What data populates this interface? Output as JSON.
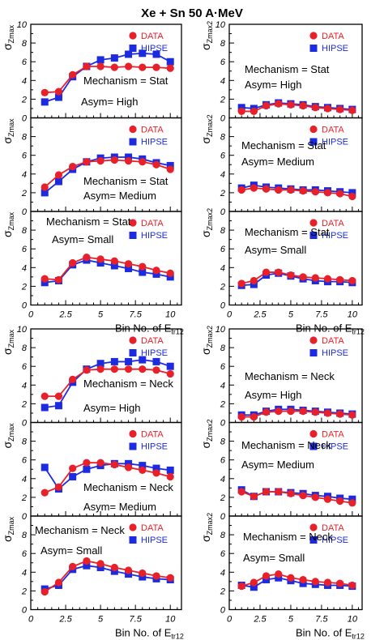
{
  "title": "Xe + Sn 50 A·MeV",
  "colors": {
    "data": "#e8202a",
    "hipse": "#1d2be0",
    "axis": "#000000"
  },
  "x_axis": {
    "label_main": "Bin No. of E",
    "label_sub": "tr12",
    "ticks": [
      "0",
      "2.5",
      "5",
      "7.5",
      "10"
    ],
    "range": [
      0,
      10.8
    ]
  },
  "y_labels": {
    "left_sigma": "σ",
    "left_sub": "Zmax",
    "right_sigma": "σ",
    "right_sub": "Zmax2"
  },
  "y_ticks": [
    "0",
    "2",
    "4",
    "6",
    "8",
    "10"
  ],
  "legend": {
    "data": "DATA",
    "hipse": "HIPSE"
  },
  "chart_data": [
    {
      "type": "line",
      "group": "upper",
      "column": "left",
      "row": 0,
      "ylabel": "σZmax",
      "xlabel": "",
      "ylim": [
        0,
        10
      ],
      "mechanism": "Mechanism = Stat",
      "asym": "Asym= High",
      "x": [
        1,
        2,
        3,
        4,
        5,
        6,
        7,
        8,
        9,
        10
      ],
      "series": [
        {
          "name": "DATA",
          "values": [
            2.7,
            2.8,
            4.6,
            5.5,
            5.5,
            5.4,
            5.5,
            5.4,
            5.4,
            5.3
          ]
        },
        {
          "name": "HIPSE",
          "values": [
            1.7,
            2.2,
            4.4,
            5.5,
            6.2,
            6.4,
            6.8,
            6.9,
            6.8,
            6.0
          ]
        }
      ]
    },
    {
      "type": "line",
      "group": "upper",
      "column": "right",
      "row": 0,
      "ylabel": "σZmax2",
      "xlabel": "",
      "ylim": [
        0,
        10
      ],
      "mechanism": "Mechanism = Stat",
      "asym": "Asym= High",
      "x": [
        1,
        2,
        3,
        4,
        5,
        6,
        7,
        8,
        9,
        10
      ],
      "series": [
        {
          "name": "DATA",
          "values": [
            0.7,
            0.7,
            1.3,
            1.5,
            1.4,
            1.3,
            1.1,
            1.0,
            0.9,
            0.8
          ]
        },
        {
          "name": "HIPSE",
          "values": [
            1.1,
            1.0,
            1.4,
            1.6,
            1.5,
            1.4,
            1.2,
            1.1,
            1.0,
            0.9
          ]
        }
      ]
    },
    {
      "type": "line",
      "group": "upper",
      "column": "left",
      "row": 1,
      "ylabel": "σZmax",
      "xlabel": "",
      "ylim": [
        0,
        10
      ],
      "mechanism": "Mechanism = Stat",
      "asym": "Asym= Medium",
      "x": [
        1,
        2,
        3,
        4,
        5,
        6,
        7,
        8,
        9,
        10
      ],
      "series": [
        {
          "name": "DATA",
          "values": [
            2.6,
            3.9,
            4.8,
            5.3,
            5.4,
            5.5,
            5.4,
            5.3,
            5.0,
            4.5
          ]
        },
        {
          "name": "HIPSE",
          "values": [
            2.0,
            3.2,
            4.5,
            5.3,
            5.7,
            5.8,
            5.8,
            5.6,
            5.2,
            4.9
          ]
        }
      ]
    },
    {
      "type": "line",
      "group": "upper",
      "column": "right",
      "row": 1,
      "ylabel": "σZmax2",
      "xlabel": "",
      "ylim": [
        0,
        10
      ],
      "mechanism": "Mechanism = Stat",
      "asym": "Asym= Medium",
      "x": [
        1,
        2,
        3,
        4,
        5,
        6,
        7,
        8,
        9,
        10
      ],
      "series": [
        {
          "name": "DATA",
          "values": [
            2.3,
            2.5,
            2.4,
            2.3,
            2.3,
            2.2,
            2.1,
            2.0,
            1.9,
            1.6
          ]
        },
        {
          "name": "HIPSE",
          "values": [
            2.5,
            2.8,
            2.6,
            2.5,
            2.4,
            2.3,
            2.3,
            2.2,
            2.1,
            2.0
          ]
        }
      ]
    },
    {
      "type": "line",
      "group": "upper",
      "column": "left",
      "row": 2,
      "ylabel": "σZmax",
      "xlabel": "",
      "ylim": [
        0,
        10
      ],
      "mechanism": "Mechanism = Stat",
      "asym": "Asym= Small",
      "x": [
        1,
        2,
        3,
        4,
        5,
        6,
        7,
        8,
        9,
        10
      ],
      "series": [
        {
          "name": "DATA",
          "values": [
            2.8,
            2.7,
            4.5,
            5.1,
            4.9,
            4.7,
            4.4,
            4.1,
            3.7,
            3.4
          ]
        },
        {
          "name": "HIPSE",
          "values": [
            2.4,
            2.6,
            4.3,
            4.8,
            4.5,
            4.2,
            3.9,
            3.5,
            3.3,
            3.0
          ]
        }
      ]
    },
    {
      "type": "line",
      "group": "upper",
      "column": "right",
      "row": 2,
      "ylabel": "σZmax2",
      "xlabel": "Bin No. of Etr12",
      "ylim": [
        0,
        10
      ],
      "mechanism": "Mechanism = Stat",
      "asym": "Asym= Small",
      "x": [
        1,
        2,
        3,
        4,
        5,
        6,
        7,
        8,
        9,
        10
      ],
      "series": [
        {
          "name": "DATA",
          "values": [
            2.3,
            2.6,
            3.5,
            3.5,
            3.2,
            3.0,
            2.9,
            2.8,
            2.7,
            2.6
          ]
        },
        {
          "name": "HIPSE",
          "values": [
            2.1,
            2.2,
            3.2,
            3.4,
            3.1,
            2.8,
            2.6,
            2.5,
            2.5,
            2.4
          ]
        }
      ]
    },
    {
      "type": "line",
      "group": "lower",
      "column": "left",
      "row": 0,
      "ylabel": "σZmax",
      "xlabel": "",
      "ylim": [
        0,
        10
      ],
      "mechanism": "Mechanism = Neck",
      "asym": "Asym= High",
      "x": [
        1,
        2,
        3,
        4,
        5,
        6,
        7,
        8,
        9,
        10
      ],
      "series": [
        {
          "name": "DATA",
          "values": [
            2.8,
            2.8,
            4.6,
            5.6,
            5.7,
            5.7,
            5.7,
            5.7,
            5.6,
            5.2
          ]
        },
        {
          "name": "HIPSE",
          "values": [
            1.6,
            1.8,
            4.3,
            5.7,
            6.3,
            6.5,
            6.5,
            6.7,
            6.5,
            6.0
          ]
        }
      ]
    },
    {
      "type": "line",
      "group": "lower",
      "column": "right",
      "row": 0,
      "ylabel": "σZmax2",
      "xlabel": "",
      "ylim": [
        0,
        10
      ],
      "mechanism": "Mechanism = Neck",
      "asym": "Asym= High",
      "x": [
        1,
        2,
        3,
        4,
        5,
        6,
        7,
        8,
        9,
        10
      ],
      "series": [
        {
          "name": "DATA",
          "values": [
            0.6,
            0.6,
            1.1,
            1.2,
            1.2,
            1.2,
            1.1,
            1.0,
            0.9,
            0.8
          ]
        },
        {
          "name": "HIPSE",
          "values": [
            0.8,
            0.8,
            1.2,
            1.4,
            1.4,
            1.3,
            1.2,
            1.1,
            1.0,
            0.9
          ]
        }
      ]
    },
    {
      "type": "line",
      "group": "lower",
      "column": "left",
      "row": 1,
      "ylabel": "σZmax",
      "xlabel": "",
      "ylim": [
        0,
        10
      ],
      "mechanism": "Mechanism = Neck",
      "asym": "Asym= Medium",
      "x": [
        1,
        2,
        3,
        4,
        5,
        6,
        7,
        8,
        9,
        10
      ],
      "series": [
        {
          "name": "DATA",
          "values": [
            2.5,
            3.1,
            5.1,
            5.7,
            5.7,
            5.5,
            5.2,
            4.9,
            4.6,
            4.2
          ]
        },
        {
          "name": "HIPSE",
          "values": [
            5.2,
            2.9,
            4.2,
            5.0,
            5.4,
            5.6,
            5.6,
            5.4,
            5.1,
            4.9
          ]
        }
      ]
    },
    {
      "type": "line",
      "group": "lower",
      "column": "right",
      "row": 1,
      "ylabel": "σZmax2",
      "xlabel": "",
      "ylim": [
        0,
        10
      ],
      "mechanism": "Mechanism = Neck",
      "asym": "Asym= Medium",
      "x": [
        1,
        2,
        3,
        4,
        5,
        6,
        7,
        8,
        9,
        10
      ],
      "series": [
        {
          "name": "DATA",
          "values": [
            2.6,
            2.1,
            2.6,
            2.6,
            2.4,
            2.2,
            2.0,
            1.8,
            1.6,
            1.4
          ]
        },
        {
          "name": "HIPSE",
          "values": [
            2.8,
            2.1,
            2.6,
            2.6,
            2.5,
            2.4,
            2.2,
            2.1,
            1.9,
            1.8
          ]
        }
      ]
    },
    {
      "type": "line",
      "group": "lower",
      "column": "left",
      "row": 2,
      "ylabel": "σZmax",
      "xlabel": "",
      "ylim": [
        0,
        10
      ],
      "mechanism": "Mechanism = Neck",
      "asym": "Asym= Small",
      "x": [
        1,
        2,
        3,
        4,
        5,
        6,
        7,
        8,
        9,
        10
      ],
      "series": [
        {
          "name": "DATA",
          "values": [
            1.9,
            2.9,
            4.6,
            5.2,
            4.9,
            4.5,
            4.2,
            3.9,
            3.6,
            3.4
          ]
        },
        {
          "name": "HIPSE",
          "values": [
            2.2,
            2.6,
            4.3,
            4.7,
            4.5,
            4.1,
            3.8,
            3.5,
            3.3,
            3.2
          ]
        }
      ]
    },
    {
      "type": "line",
      "group": "lower",
      "column": "right",
      "row": 2,
      "ylabel": "σZmax2",
      "xlabel": "Bin No. of Etr12",
      "ylim": [
        0,
        10
      ],
      "mechanism": "Mechanism = Neck",
      "asym": "Asym= Small",
      "x": [
        1,
        2,
        3,
        4,
        5,
        6,
        7,
        8,
        9,
        10
      ],
      "series": [
        {
          "name": "DATA",
          "values": [
            2.5,
            2.9,
            3.6,
            3.8,
            3.4,
            3.2,
            3.0,
            2.9,
            2.8,
            2.6
          ]
        },
        {
          "name": "HIPSE",
          "values": [
            2.6,
            2.4,
            3.2,
            3.4,
            3.1,
            2.8,
            2.7,
            2.6,
            2.6,
            2.5
          ]
        }
      ]
    }
  ]
}
